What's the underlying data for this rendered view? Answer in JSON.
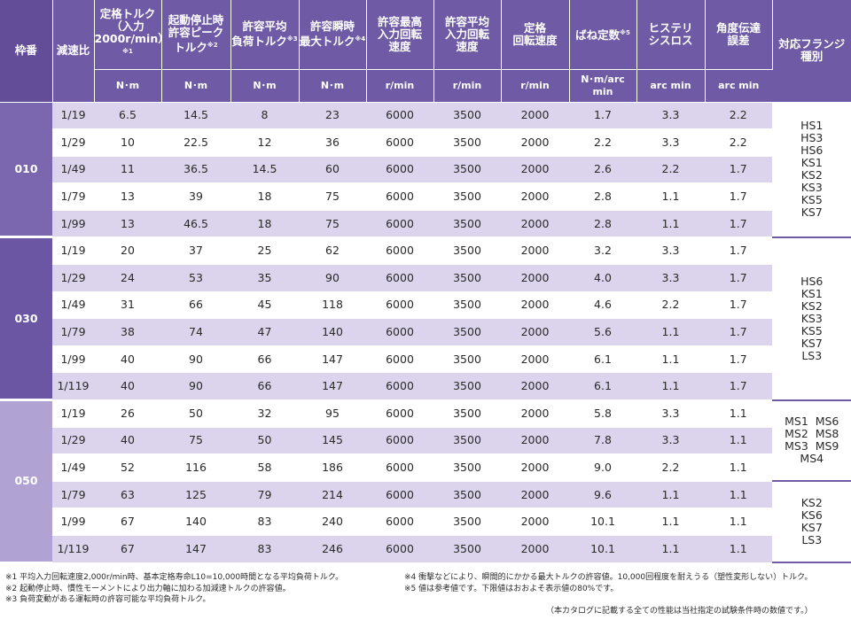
{
  "header": {
    "waku": "枠番",
    "ratio": "減速比",
    "cols": [
      {
        "title": "定格トルク\n（入力\n2000r/min）",
        "note": "※1",
        "unit": "N･m"
      },
      {
        "title": "起動停止時\n許容ピーク\nトルク",
        "note": "※2",
        "unit": "N･m"
      },
      {
        "title": "許容平均\n負荷トルク",
        "note": "※3",
        "unit": "N･m"
      },
      {
        "title": "許容瞬時\n最大トルク",
        "note": "※4",
        "unit": "N･m"
      },
      {
        "title": "許容最高\n入力回転\n速度",
        "note": "",
        "unit": "r/min"
      },
      {
        "title": "許容平均\n入力回転\n速度",
        "note": "",
        "unit": "r/min"
      },
      {
        "title": "定格\n回転速度",
        "note": "",
        "unit": "r/min"
      },
      {
        "title": "ばね定数",
        "note": "※5",
        "unit": "N･m/arc min"
      },
      {
        "title": "ヒステリ\nシスロス",
        "note": "",
        "unit": "arc min"
      },
      {
        "title": "角度伝達\n誤差",
        "note": "",
        "unit": "arc min"
      }
    ],
    "flange": "対応フランジ\n種別"
  },
  "groups": [
    {
      "waku": "010",
      "flange": [
        "HS1",
        "HS3",
        "HS6",
        "KS1",
        "KS2",
        "KS3",
        "KS5",
        "KS7"
      ],
      "rows": [
        [
          "1/19",
          "6.5",
          "14.5",
          "8",
          "23",
          "6000",
          "3500",
          "2000",
          "1.7",
          "3.3",
          "2.2"
        ],
        [
          "1/29",
          "10",
          "22.5",
          "12",
          "36",
          "6000",
          "3500",
          "2000",
          "2.2",
          "3.3",
          "2.2"
        ],
        [
          "1/49",
          "11",
          "36.5",
          "14.5",
          "60",
          "6000",
          "3500",
          "2000",
          "2.6",
          "2.2",
          "1.7"
        ],
        [
          "1/79",
          "13",
          "39",
          "18",
          "75",
          "6000",
          "3500",
          "2000",
          "2.8",
          "1.1",
          "1.7"
        ],
        [
          "1/99",
          "13",
          "46.5",
          "18",
          "75",
          "6000",
          "3500",
          "2000",
          "2.8",
          "1.1",
          "1.7"
        ]
      ]
    },
    {
      "waku": "030",
      "flange": [
        "HS6",
        "KS1",
        "KS2",
        "KS3",
        "KS5",
        "KS7",
        "LS3"
      ],
      "rows": [
        [
          "1/19",
          "20",
          "37",
          "25",
          "62",
          "6000",
          "3500",
          "2000",
          "3.2",
          "3.3",
          "1.7"
        ],
        [
          "1/29",
          "24",
          "53",
          "35",
          "90",
          "6000",
          "3500",
          "2000",
          "4.0",
          "3.3",
          "1.7"
        ],
        [
          "1/49",
          "31",
          "66",
          "45",
          "118",
          "6000",
          "3500",
          "2000",
          "4.6",
          "2.2",
          "1.7"
        ],
        [
          "1/79",
          "38",
          "74",
          "47",
          "140",
          "6000",
          "3500",
          "2000",
          "5.6",
          "1.1",
          "1.7"
        ],
        [
          "1/99",
          "40",
          "90",
          "66",
          "147",
          "6000",
          "3500",
          "2000",
          "6.1",
          "1.1",
          "1.7"
        ],
        [
          "1/119",
          "40",
          "90",
          "66",
          "147",
          "6000",
          "3500",
          "2000",
          "6.1",
          "1.1",
          "1.7"
        ]
      ]
    },
    {
      "waku": "050",
      "flange_a": [
        "MS1  MS6",
        "MS2  MS8",
        "MS3  MS9",
        "MS4"
      ],
      "flange_b": [
        "KS2",
        "KS6",
        "KS7",
        "LS3"
      ],
      "rows": [
        [
          "1/19",
          "26",
          "50",
          "32",
          "95",
          "6000",
          "3500",
          "2000",
          "5.8",
          "3.3",
          "1.1"
        ],
        [
          "1/29",
          "40",
          "75",
          "50",
          "145",
          "6000",
          "3500",
          "2000",
          "7.8",
          "3.3",
          "1.1"
        ],
        [
          "1/49",
          "52",
          "116",
          "58",
          "186",
          "6000",
          "3500",
          "2000",
          "9.0",
          "2.2",
          "1.1"
        ],
        [
          "1/79",
          "63",
          "125",
          "79",
          "214",
          "6000",
          "3500",
          "2000",
          "9.6",
          "1.1",
          "1.1"
        ],
        [
          "1/99",
          "67",
          "140",
          "83",
          "240",
          "6000",
          "3500",
          "2000",
          "10.1",
          "1.1",
          "1.1"
        ],
        [
          "1/119",
          "67",
          "147",
          "83",
          "246",
          "6000",
          "3500",
          "2000",
          "10.1",
          "1.1",
          "1.1"
        ]
      ]
    }
  ],
  "notes": {
    "n1": "※1 平均入力回転速度2,000r/min時、基本定格寿命L10=10,000時間となる平均負荷トルク。",
    "n2": "※2 起動停止時、慣性モーメントにより出力軸に加わる加減速トルクの許容値。",
    "n3": "※3 負荷変動がある運転時の許容可能な平均負荷トルク。",
    "n4": "※4 衝撃などにより、瞬間的にかかる最大トルクの許容値。10,000回程度を耐えうる（塑性変形しない）トルク。",
    "n5": "※5 値は参考値です。下限値はおおよそ表示値の80%です。",
    "footer": "（本カタログに記載する全ての性能は当社指定の試験条件時の数値です。）"
  },
  "colors": {
    "header": "#6f5aa5",
    "shade": "#dcd4ec",
    "waku010": "#7a67b0",
    "waku030": "#6a56a2",
    "waku050": "#b0a3d4"
  }
}
